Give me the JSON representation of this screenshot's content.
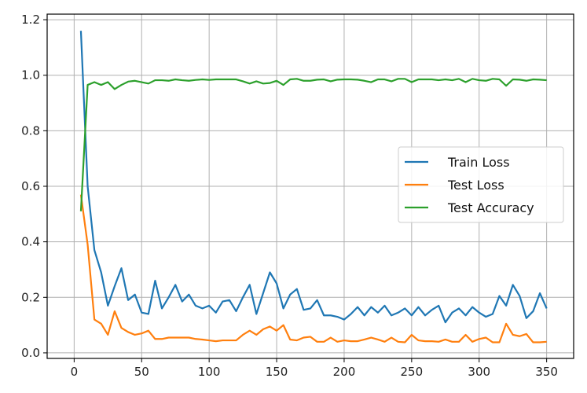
{
  "chart_data": {
    "type": "line",
    "title": "",
    "xlabel": "",
    "ylabel": "",
    "xlim": [
      -20,
      370
    ],
    "ylim": [
      -0.02,
      1.22
    ],
    "x_ticks": [
      0,
      50,
      100,
      150,
      200,
      250,
      300,
      350
    ],
    "y_ticks": [
      0.0,
      0.2,
      0.4,
      0.6,
      0.8,
      1.0,
      1.2
    ],
    "x_tick_labels": [
      "0",
      "50",
      "100",
      "150",
      "200",
      "250",
      "300",
      "350"
    ],
    "y_tick_labels": [
      "0.0",
      "0.2",
      "0.4",
      "0.6",
      "0.8",
      "1.0",
      "1.2"
    ],
    "grid": true,
    "legend_position": "right",
    "x": [
      5,
      10,
      15,
      20,
      25,
      30,
      35,
      40,
      45,
      50,
      55,
      60,
      65,
      70,
      75,
      80,
      85,
      90,
      95,
      100,
      105,
      110,
      115,
      120,
      125,
      130,
      135,
      140,
      145,
      150,
      155,
      160,
      165,
      170,
      175,
      180,
      185,
      190,
      195,
      200,
      205,
      210,
      215,
      220,
      225,
      230,
      235,
      240,
      245,
      250,
      255,
      260,
      265,
      270,
      275,
      280,
      285,
      290,
      295,
      300,
      305,
      310,
      315,
      320,
      325,
      330,
      335,
      340,
      345,
      350
    ],
    "series": [
      {
        "name": "Train Loss",
        "color": "#1f77b4",
        "values": [
          1.16,
          0.6,
          0.37,
          0.29,
          0.17,
          0.24,
          0.305,
          0.19,
          0.21,
          0.145,
          0.14,
          0.26,
          0.16,
          0.2,
          0.245,
          0.185,
          0.21,
          0.17,
          0.16,
          0.17,
          0.145,
          0.185,
          0.19,
          0.15,
          0.2,
          0.245,
          0.14,
          0.215,
          0.29,
          0.25,
          0.16,
          0.21,
          0.23,
          0.155,
          0.16,
          0.19,
          0.135,
          0.135,
          0.13,
          0.12,
          0.14,
          0.165,
          0.135,
          0.165,
          0.145,
          0.17,
          0.135,
          0.145,
          0.16,
          0.135,
          0.165,
          0.135,
          0.155,
          0.17,
          0.11,
          0.145,
          0.16,
          0.135,
          0.165,
          0.145,
          0.13,
          0.14,
          0.205,
          0.17,
          0.245,
          0.205,
          0.125,
          0.15,
          0.215,
          0.16
        ]
      },
      {
        "name": "Test Loss",
        "color": "#ff7f0e",
        "values": [
          0.57,
          0.39,
          0.12,
          0.105,
          0.065,
          0.15,
          0.09,
          0.075,
          0.065,
          0.07,
          0.08,
          0.05,
          0.05,
          0.055,
          0.055,
          0.055,
          0.055,
          0.05,
          0.048,
          0.045,
          0.042,
          0.045,
          0.045,
          0.045,
          0.065,
          0.08,
          0.065,
          0.085,
          0.095,
          0.08,
          0.1,
          0.048,
          0.045,
          0.055,
          0.058,
          0.04,
          0.04,
          0.055,
          0.04,
          0.045,
          0.042,
          0.042,
          0.048,
          0.055,
          0.048,
          0.04,
          0.055,
          0.04,
          0.038,
          0.065,
          0.045,
          0.042,
          0.042,
          0.04,
          0.048,
          0.04,
          0.04,
          0.065,
          0.04,
          0.05,
          0.055,
          0.038,
          0.038,
          0.105,
          0.065,
          0.06,
          0.068,
          0.038,
          0.038,
          0.04
        ]
      },
      {
        "name": "Test Accuracy",
        "color": "#2ca02c",
        "values": [
          0.51,
          0.965,
          0.975,
          0.965,
          0.975,
          0.95,
          0.965,
          0.977,
          0.98,
          0.975,
          0.97,
          0.982,
          0.982,
          0.98,
          0.985,
          0.982,
          0.98,
          0.983,
          0.985,
          0.983,
          0.985,
          0.985,
          0.985,
          0.985,
          0.978,
          0.97,
          0.978,
          0.97,
          0.972,
          0.98,
          0.965,
          0.985,
          0.987,
          0.98,
          0.98,
          0.984,
          0.985,
          0.978,
          0.984,
          0.985,
          0.985,
          0.984,
          0.98,
          0.975,
          0.985,
          0.985,
          0.978,
          0.987,
          0.987,
          0.975,
          0.985,
          0.985,
          0.985,
          0.982,
          0.985,
          0.982,
          0.987,
          0.975,
          0.987,
          0.982,
          0.98,
          0.987,
          0.985,
          0.962,
          0.985,
          0.984,
          0.98,
          0.985,
          0.984,
          0.982
        ]
      }
    ]
  }
}
